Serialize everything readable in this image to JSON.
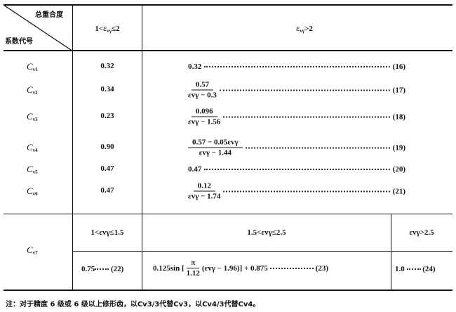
{
  "header": {
    "diag_top": "总重合度",
    "diag_bottom": "系数代号",
    "col1": {
      "prefix": "1<",
      "eps": "ε",
      "sub": "vγ",
      "suffix": "≤2"
    },
    "col2": {
      "eps": "ε",
      "sub": "vγ",
      "suffix": ">2"
    }
  },
  "rows": [
    {
      "sym": "C",
      "sub": "v1",
      "val": "0.32",
      "formula": "0.32",
      "eq": "(16)"
    },
    {
      "sym": "C",
      "sub": "v2",
      "val": "0.34",
      "num": "0.57",
      "den": "εvγ − 0.3",
      "eq": "(17)"
    },
    {
      "sym": "C",
      "sub": "v3",
      "val": "0.23",
      "num": "0.096",
      "den": "εvγ − 1.56",
      "eq": "(18)"
    },
    {
      "sym": "C",
      "sub": "v4",
      "val": "0.90",
      "num": "0.57 − 0.05εvγ",
      "den": "εvγ − 1.44",
      "eq": "(19)"
    },
    {
      "sym": "C",
      "sub": "v5",
      "val": "0.47",
      "formula": "0.47",
      "eq": "(20)"
    },
    {
      "sym": "C",
      "sub": "v6",
      "val": "0.47",
      "num": "0.12",
      "den": "εvγ − 1.74",
      "eq": "(21)"
    }
  ],
  "cv7": {
    "sym": "C",
    "sub": "v7",
    "ranges": [
      "1<εvγ≤1.5",
      "1.5<εvγ≤2.5",
      "εvγ>2.5"
    ],
    "f22": "0.75",
    "eq22": "(22)",
    "f23_a": "0.125sin [",
    "f23_num": "π",
    "f23_den": "1.12",
    "f23_b": "(εvγ − 1.96)] + 0.875",
    "eq23": "(23)",
    "f24": "1.0",
    "eq24": "(24)"
  },
  "note": "注：对于精度 6 级或 6 级以上修形齿，以Cv3/3代替Cv3，以Cv4/3代替Cv4。"
}
